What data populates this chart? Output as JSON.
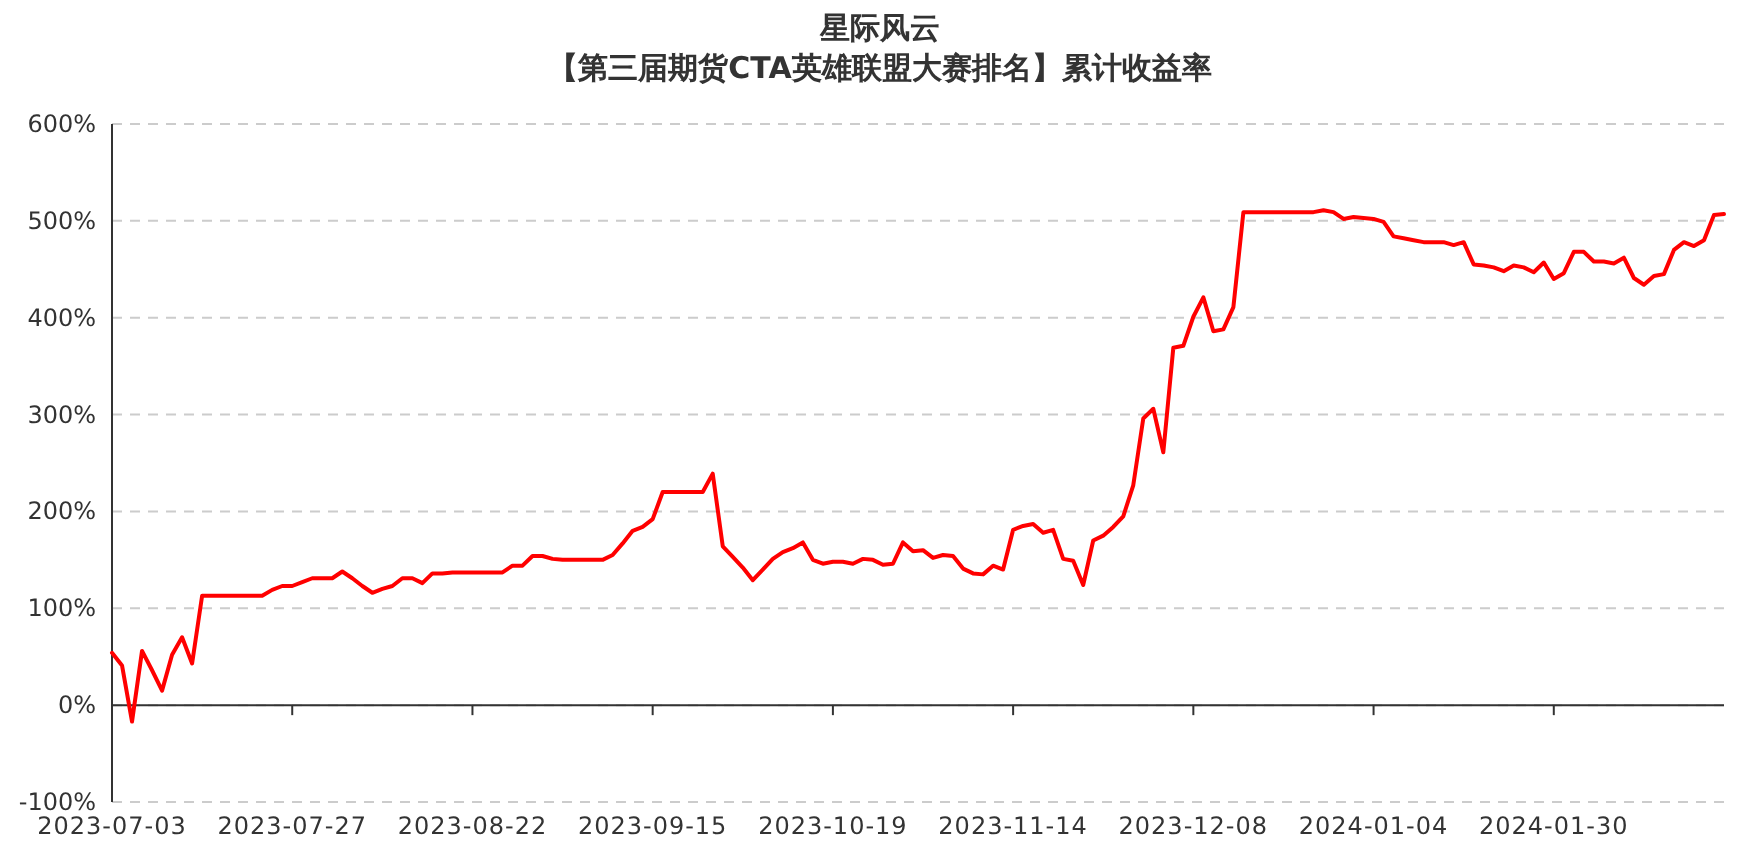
{
  "chart_data": {
    "type": "line",
    "title": "星际风云",
    "subtitle": "【第三届期货CTA英雄联盟大赛排名】累计收益率",
    "categories": [
      "2023-07-03",
      null,
      null,
      null,
      null,
      null,
      null,
      null,
      null,
      null,
      null,
      null,
      null,
      null,
      null,
      null,
      null,
      null,
      "2023-07-27",
      null,
      null,
      null,
      null,
      null,
      null,
      null,
      null,
      null,
      null,
      null,
      null,
      null,
      null,
      null,
      null,
      null,
      "2023-08-22",
      null,
      null,
      null,
      null,
      null,
      null,
      null,
      null,
      null,
      null,
      null,
      null,
      null,
      null,
      null,
      null,
      null,
      "2023-09-15",
      null,
      null,
      null,
      null,
      null,
      null,
      null,
      null,
      null,
      null,
      null,
      null,
      null,
      null,
      null,
      null,
      null,
      "2023-10-19",
      null,
      null,
      null,
      null,
      null,
      null,
      null,
      null,
      null,
      null,
      null,
      null,
      null,
      null,
      null,
      null,
      null,
      "2023-11-14",
      null,
      null,
      null,
      null,
      null,
      null,
      null,
      null,
      null,
      null,
      null,
      null,
      null,
      null,
      null,
      null,
      null,
      "2023-12-08",
      null,
      null,
      null,
      null,
      null,
      null,
      null,
      null,
      null,
      null,
      null,
      null,
      null,
      null,
      null,
      null,
      null,
      "2024-01-04",
      null,
      null,
      null,
      null,
      null,
      null,
      null,
      null,
      null,
      null,
      null,
      null,
      null,
      null,
      null,
      null,
      null,
      "2024-01-30",
      null,
      null,
      null,
      null,
      null,
      null,
      null,
      null,
      null,
      null,
      null,
      null,
      null,
      null,
      null,
      null,
      null
    ],
    "series": [
      {
        "color": "#ff0000",
        "values": [
          54,
          41,
          -17,
          56,
          36,
          15,
          52,
          70,
          43,
          113,
          113,
          113,
          113,
          113,
          113,
          113,
          119,
          123,
          123,
          127,
          131,
          131,
          131,
          138,
          131,
          123,
          116,
          120,
          123,
          131,
          131,
          126,
          136,
          136,
          137,
          137,
          137,
          137,
          137,
          137,
          144,
          144,
          154,
          154,
          151,
          150,
          150,
          150,
          150,
          150,
          155,
          167,
          180,
          184,
          192,
          220,
          220,
          220,
          220,
          220,
          239,
          164,
          153,
          142,
          129,
          140,
          151,
          158,
          162,
          168,
          150,
          146,
          148,
          148,
          146,
          151,
          150,
          145,
          146,
          168,
          159,
          160,
          152,
          155,
          154,
          141,
          136,
          135,
          144,
          140,
          181,
          185,
          187,
          178,
          181,
          151,
          149,
          124,
          170,
          175,
          184,
          195,
          227,
          296,
          306,
          261,
          369,
          371,
          401,
          421,
          386,
          388,
          411,
          509,
          509,
          509,
          509,
          509,
          509,
          509,
          509,
          511,
          509,
          502,
          504,
          503,
          502,
          499,
          484,
          482,
          480,
          478,
          478,
          478,
          475,
          478,
          455,
          454,
          452,
          448,
          454,
          452,
          447,
          457,
          440,
          446,
          468,
          468,
          458,
          458,
          456,
          462,
          441,
          434,
          443,
          445,
          470,
          478,
          474,
          480,
          506,
          507
        ]
      }
    ],
    "ylim": [
      -100,
      600
    ],
    "yticks": [
      {
        "value": -100,
        "label": "-100%"
      },
      {
        "value": 0,
        "label": "0%"
      },
      {
        "value": 100,
        "label": "100%"
      },
      {
        "value": 200,
        "label": "200%"
      },
      {
        "value": 300,
        "label": "300%"
      },
      {
        "value": 400,
        "label": "400%"
      },
      {
        "value": 500,
        "label": "500%"
      },
      {
        "value": 600,
        "label": "600%"
      }
    ],
    "grid": "y",
    "line_style": "solid"
  }
}
